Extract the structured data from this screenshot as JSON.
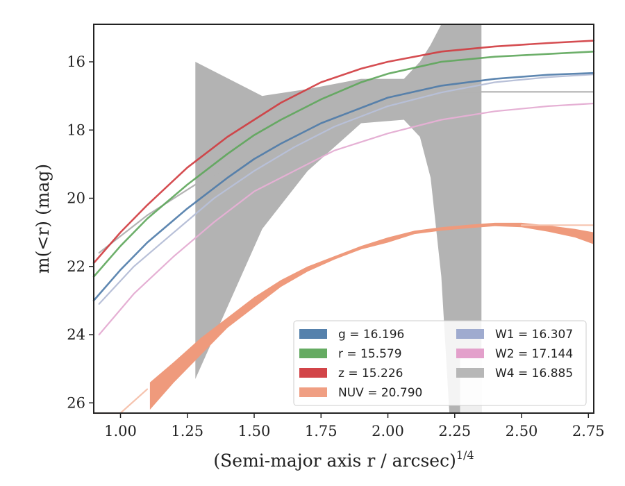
{
  "chart_data": {
    "type": "line",
    "xlabel": "(Semi-major axis r / arcsec)",
    "xlabel_power": "1/4",
    "ylabel": "m(<r) (mag)",
    "xlim": [
      0.9,
      2.77
    ],
    "ylim": [
      26.3,
      14.9
    ],
    "y_inverted": true,
    "grid": false,
    "legend_position": "lower-right",
    "x_ticks": [
      "1.00",
      "1.25",
      "1.50",
      "1.75",
      "2.00",
      "2.25",
      "2.50",
      "2.75"
    ],
    "y_ticks": [
      "16",
      "18",
      "20",
      "22",
      "24",
      "26"
    ],
    "legend": [
      {
        "label": "g = 16.196",
        "color": "#4c7aa8"
      },
      {
        "label": "r = 15.579",
        "color": "#5da65a"
      },
      {
        "label": "z = 15.226",
        "color": "#d03a3e"
      },
      {
        "label": "NUV = 20.790",
        "color": "#ef9a7c"
      },
      {
        "label": "W1 = 16.307",
        "color": "#9aa6cc"
      },
      {
        "label": "W2 = 17.144",
        "color": "#e29bc8"
      },
      {
        "label": "W4 = 16.885",
        "color": "#b3b3b3"
      }
    ],
    "series": [
      {
        "name": "W4",
        "color": "#b3b3b3",
        "x": [
          0.92,
          1.1,
          1.28,
          1.5,
          1.75,
          2.0,
          2.25,
          2.5,
          2.77
        ],
        "y": [
          21.6,
          20.5,
          19.6,
          18.7,
          18.0,
          17.2,
          16.88,
          16.88,
          16.88
        ]
      },
      {
        "name": "W2",
        "color": "#e5b0d4",
        "x": [
          0.92,
          1.05,
          1.2,
          1.35,
          1.5,
          1.65,
          1.8,
          2.0,
          2.2,
          2.4,
          2.6,
          2.77
        ],
        "y": [
          24.0,
          22.8,
          21.7,
          20.7,
          19.8,
          19.2,
          18.6,
          18.1,
          17.7,
          17.45,
          17.3,
          17.22
        ]
      },
      {
        "name": "W1",
        "color": "#b8c0d8",
        "x": [
          0.92,
          1.05,
          1.2,
          1.35,
          1.5,
          1.65,
          1.8,
          2.0,
          2.2,
          2.4,
          2.6,
          2.77
        ],
        "y": [
          23.1,
          22.0,
          21.0,
          20.0,
          19.2,
          18.5,
          17.9,
          17.3,
          16.9,
          16.6,
          16.45,
          16.37
        ]
      },
      {
        "name": "NUV (extrapolated)",
        "color": "#f6c3ae",
        "x": [
          0.9,
          1.0,
          1.1
        ],
        "y": [
          27.0,
          26.3,
          25.6
        ]
      },
      {
        "name": "NUV (extended)",
        "color": "#f6c3ae",
        "x": [
          2.5,
          2.77
        ],
        "y": [
          20.79,
          20.79
        ]
      }
    ],
    "bands": [
      {
        "name": "W4 uncertainty",
        "color": "#b3b3b3",
        "opacity": 1,
        "x": [
          1.28,
          1.53,
          1.7,
          1.9,
          2.06,
          2.12,
          2.16,
          2.2,
          2.23,
          2.27,
          2.35
        ],
        "y_upper": [
          16.0,
          17.0,
          16.8,
          16.5,
          16.5,
          16.0,
          15.5,
          14.9,
          14.9,
          14.9,
          14.9
        ],
        "y_lower": [
          25.3,
          20.9,
          19.2,
          17.8,
          17.7,
          18.2,
          19.4,
          22.3,
          26.3,
          26.3,
          26.3
        ]
      },
      {
        "name": "W4 uncertainty (light)",
        "color": "#efefef",
        "opacity": 1,
        "x": [
          2.27,
          2.35
        ],
        "y_upper": [
          24.5,
          24.5
        ],
        "y_lower": [
          26.3,
          26.3
        ]
      },
      {
        "name": "NUV",
        "color": "#ef9a7c",
        "opacity": 1,
        "x": [
          1.11,
          1.2,
          1.3,
          1.4,
          1.5,
          1.6,
          1.7,
          1.8,
          1.9,
          2.0,
          2.1,
          2.2,
          2.3,
          2.4,
          2.5,
          2.6,
          2.7,
          2.77
        ],
        "y_upper": [
          25.4,
          24.8,
          24.1,
          23.5,
          22.9,
          22.4,
          22.0,
          21.7,
          21.4,
          21.15,
          20.95,
          20.85,
          20.78,
          20.72,
          20.72,
          20.8,
          20.9,
          21.0
        ],
        "y_lower": [
          26.2,
          25.4,
          24.6,
          23.8,
          23.2,
          22.6,
          22.15,
          21.8,
          21.5,
          21.3,
          21.05,
          20.95,
          20.88,
          20.82,
          20.85,
          20.98,
          21.15,
          21.35
        ]
      }
    ],
    "lines": [
      {
        "name": "g",
        "color": "#4c7aa8",
        "x": [
          0.9,
          1.0,
          1.1,
          1.25,
          1.4,
          1.5,
          1.6,
          1.75,
          1.9,
          2.0,
          2.2,
          2.4,
          2.6,
          2.77
        ],
        "y": [
          23.0,
          22.1,
          21.3,
          20.3,
          19.4,
          18.85,
          18.4,
          17.8,
          17.35,
          17.05,
          16.7,
          16.5,
          16.38,
          16.33
        ]
      },
      {
        "name": "r",
        "color": "#5da65a",
        "x": [
          0.9,
          1.0,
          1.1,
          1.25,
          1.4,
          1.5,
          1.6,
          1.75,
          1.9,
          2.0,
          2.2,
          2.4,
          2.6,
          2.77
        ],
        "y": [
          22.3,
          21.4,
          20.6,
          19.6,
          18.7,
          18.15,
          17.7,
          17.1,
          16.6,
          16.35,
          16.0,
          15.85,
          15.77,
          15.7
        ]
      },
      {
        "name": "z",
        "color": "#d03a3e",
        "x": [
          0.9,
          1.0,
          1.1,
          1.25,
          1.4,
          1.5,
          1.6,
          1.75,
          1.9,
          2.0,
          2.2,
          2.4,
          2.6,
          2.77
        ],
        "y": [
          21.9,
          21.0,
          20.2,
          19.1,
          18.2,
          17.7,
          17.2,
          16.6,
          16.2,
          16.0,
          15.7,
          15.55,
          15.45,
          15.38
        ]
      }
    ]
  }
}
